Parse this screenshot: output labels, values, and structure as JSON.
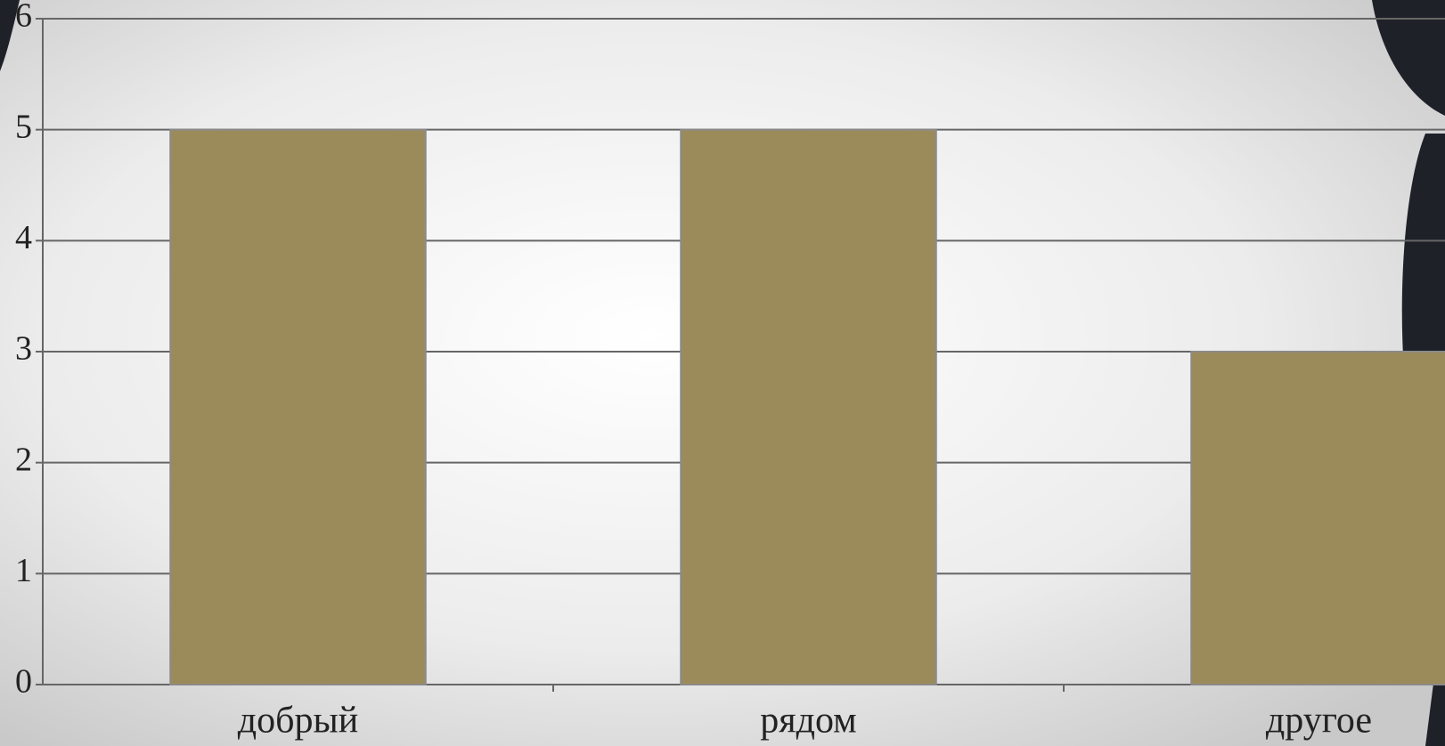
{
  "chart_data": {
    "type": "bar",
    "categories": [
      "добрый",
      "рядом",
      "другое"
    ],
    "values": [
      5,
      5,
      3
    ],
    "color": "#9c8b5a",
    "ylim": [
      0,
      6
    ],
    "yticks": [
      0,
      1,
      2,
      3,
      4,
      5,
      6
    ],
    "grid": true
  }
}
